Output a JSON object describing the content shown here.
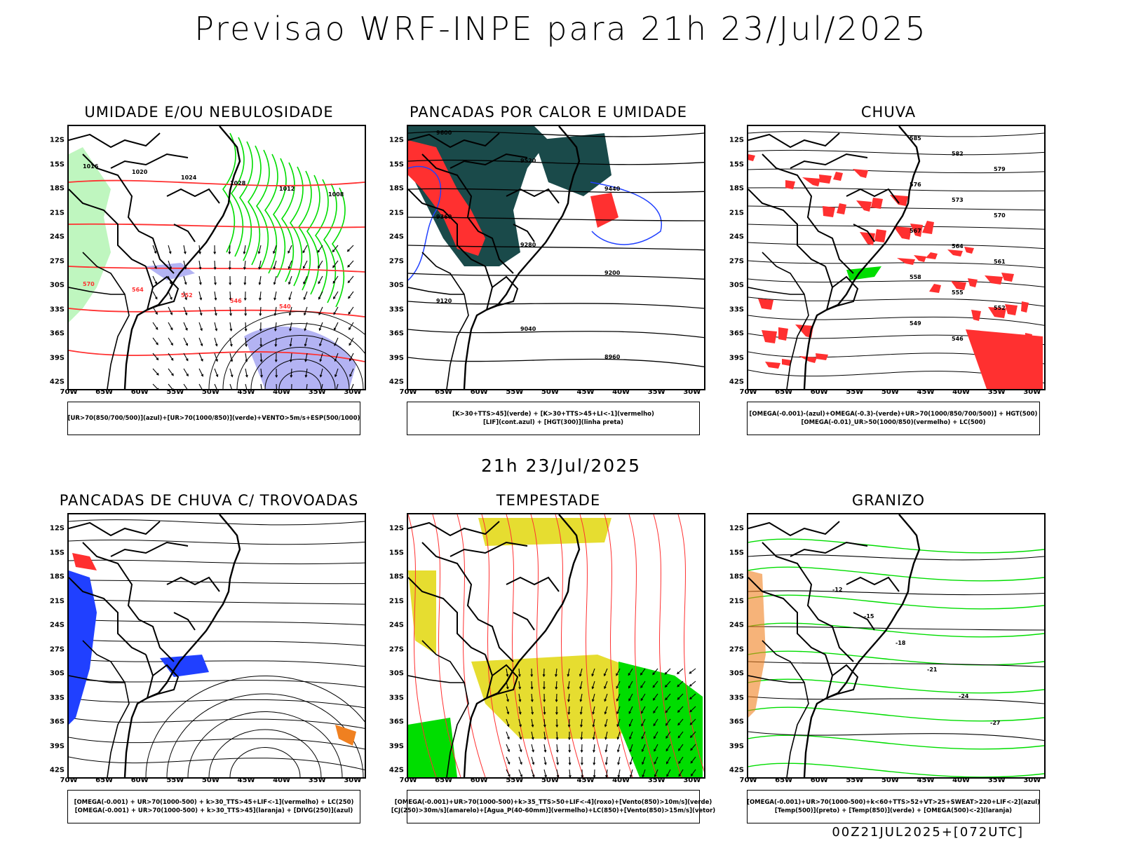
{
  "header": {
    "title": "Previsao WRF-INPE  para 21h 23/Jul/2025",
    "subtitle": "21h 23/Jul/2025"
  },
  "footer": {
    "run_label": "00Z21JUL2025+[072UTC]"
  },
  "axes": {
    "lat_labels": [
      "12S",
      "15S",
      "18S",
      "21S",
      "24S",
      "27S",
      "30S",
      "33S",
      "36S",
      "39S",
      "42S"
    ],
    "lon_labels": [
      "70W",
      "65W",
      "60W",
      "55W",
      "50W",
      "45W",
      "40W",
      "35W",
      "30W"
    ]
  },
  "colors": {
    "red": "#ff3030",
    "green": "#00dd00",
    "blue": "#2040ff",
    "dark": "#1a4a4a",
    "yellow": "#e6dd30",
    "purple": "#a0a0f0",
    "orange": "#f08020"
  },
  "panels": [
    {
      "title": "UMIDADE E/OU NEBULOSIDADE",
      "legend": [
        "[UR>70(850/700/500)](azul)+[UR>70(1000/850)](verde)+VENTO>5m/s+ESP(500/1000)"
      ],
      "contour_labels": [
        "1016",
        "1020",
        "1024",
        "1028",
        "1012",
        "1008",
        "570",
        "564",
        "552",
        "546",
        "540"
      ]
    },
    {
      "title": "PANCADAS POR CALOR E UMIDADE",
      "legend": [
        "[K>30+TTS>45](verde)  +  [K>30+TTS>45+LI<-1](vermelho)",
        "[LIF](cont.azul)  +  [HGT(300)](linha preta)"
      ],
      "contour_labels": [
        "9600",
        "9520",
        "9440",
        "9360",
        "9280",
        "9200",
        "9120",
        "9040",
        "8960"
      ]
    },
    {
      "title": "CHUVA",
      "legend": [
        "[OMEGA(-0.001)-(azul)+OMEGA(-0.3)-(verde)+UR>70(1000/850/700/500)]  +  HGT(500)",
        "[OMEGA(-0.01)_UR>50(1000/850)(vermelho)  +  LC(500)"
      ],
      "contour_labels": [
        "585",
        "582",
        "579",
        "576",
        "573",
        "570",
        "567",
        "564",
        "561",
        "558",
        "555",
        "552",
        "549",
        "546"
      ]
    },
    {
      "title": "PANCADAS DE CHUVA C/ TROVOADAS",
      "legend": [
        "[OMEGA(-0.001)  +  UR>70(1000-500)  +  k>30_TTS>45+LIF<-1](vermelho)  +  LC(250)",
        "[OMEGA(-0.001)  +  UR>70(1000-500)  +  k>30_TTS>45](laranja)  +  [DIVG(250)](azul)"
      ],
      "contour_labels": []
    },
    {
      "title": "TEMPESTADE",
      "legend": [
        "[OMEGA(-0.001)+UR>70(1000-500)+k>35_TTS>50+LIF<-4](roxo)+[Vento(850)>10m/s](verde)",
        "[CJ(250)>30m/s](amarelo)+[Agua_P(40-60mm)](vermelho)+LC(850)+[Vento(850)>15m/s](vetor)"
      ],
      "contour_labels": []
    },
    {
      "title": "GRANIZO",
      "legend": [
        "[OMEGA(-0.001)+UR>70(1000-500)+k<60+TTS>52+VT>25+SWEAT>220+LIF<-2](azul)",
        "[Temp(500)](preto)  +  [Temp(850)](verde)  +  [OMEGA(500)<-2](laranja)"
      ],
      "contour_labels": [
        "-12",
        "-15",
        "-18",
        "-21",
        "-24",
        "-27"
      ]
    }
  ]
}
